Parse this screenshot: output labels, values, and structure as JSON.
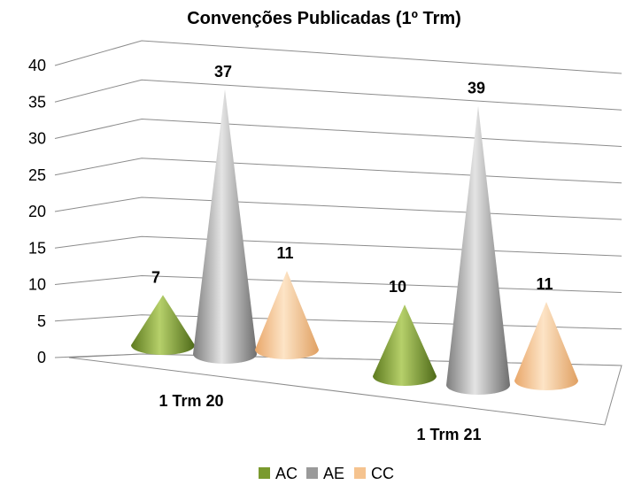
{
  "chart_data": {
    "type": "bar",
    "shape": "cone-3d",
    "title": "Convenções Publicadas (1º Trm)",
    "xlabel": "",
    "ylabel": "",
    "categories": [
      "1 Trm 20",
      "1 Trm 21"
    ],
    "series": [
      {
        "name": "AC",
        "values": [
          7,
          10
        ],
        "color": "#7a9a2e"
      },
      {
        "name": "AE",
        "values": [
          37,
          39
        ],
        "color": "#9a9a9a"
      },
      {
        "name": "CC",
        "values": [
          11,
          11
        ],
        "color": "#f5c38f"
      }
    ],
    "ylim": [
      0,
      40
    ],
    "yticks": [
      "0",
      "5",
      "10",
      "15",
      "20",
      "25",
      "30",
      "35",
      "40"
    ],
    "grid": true,
    "legend": "bottom",
    "data_labels": true
  }
}
